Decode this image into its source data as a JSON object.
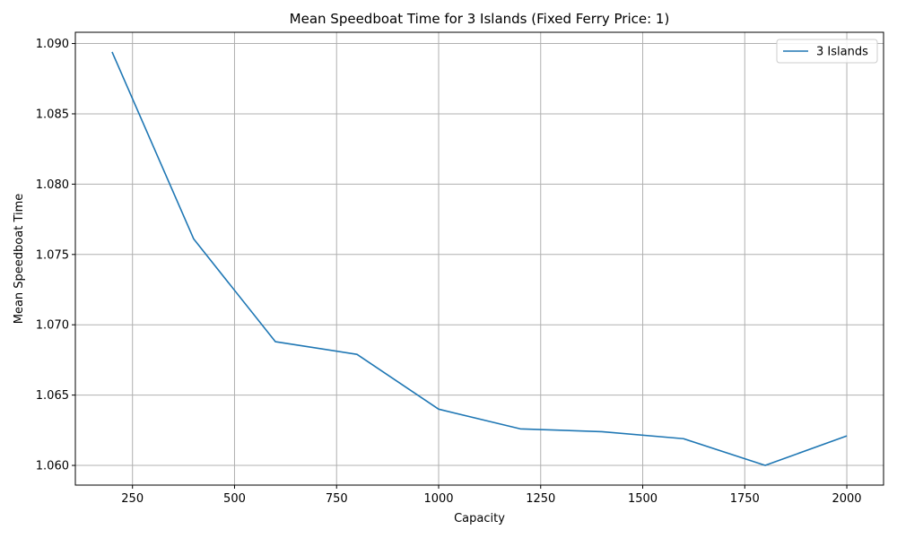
{
  "chart_data": {
    "type": "line",
    "title": "Mean Speedboat Time for 3 Islands (Fixed Ferry Price: 1)",
    "xlabel": "Capacity",
    "ylabel": "Mean Speedboat Time",
    "xlim": [
      110,
      2090
    ],
    "ylim": [
      1.0586,
      1.0908
    ],
    "xticks": [
      250,
      500,
      750,
      1000,
      1250,
      1500,
      1750,
      2000
    ],
    "xtick_labels": [
      "250",
      "500",
      "750",
      "1000",
      "1250",
      "1500",
      "1750",
      "2000"
    ],
    "yticks": [
      1.06,
      1.065,
      1.07,
      1.075,
      1.08,
      1.085,
      1.09
    ],
    "ytick_labels": [
      "1.060",
      "1.065",
      "1.070",
      "1.075",
      "1.080",
      "1.085",
      "1.090"
    ],
    "grid": true,
    "legend": "top-right",
    "series": [
      {
        "name": "3 Islands",
        "color": "#1f77b4",
        "x": [
          200,
          400,
          600,
          800,
          1000,
          1200,
          1400,
          1600,
          1800,
          2000
        ],
        "y": [
          1.0894,
          1.0761,
          1.0688,
          1.0679,
          1.064,
          1.0626,
          1.0624,
          1.0619,
          1.06,
          1.0621
        ]
      }
    ]
  }
}
